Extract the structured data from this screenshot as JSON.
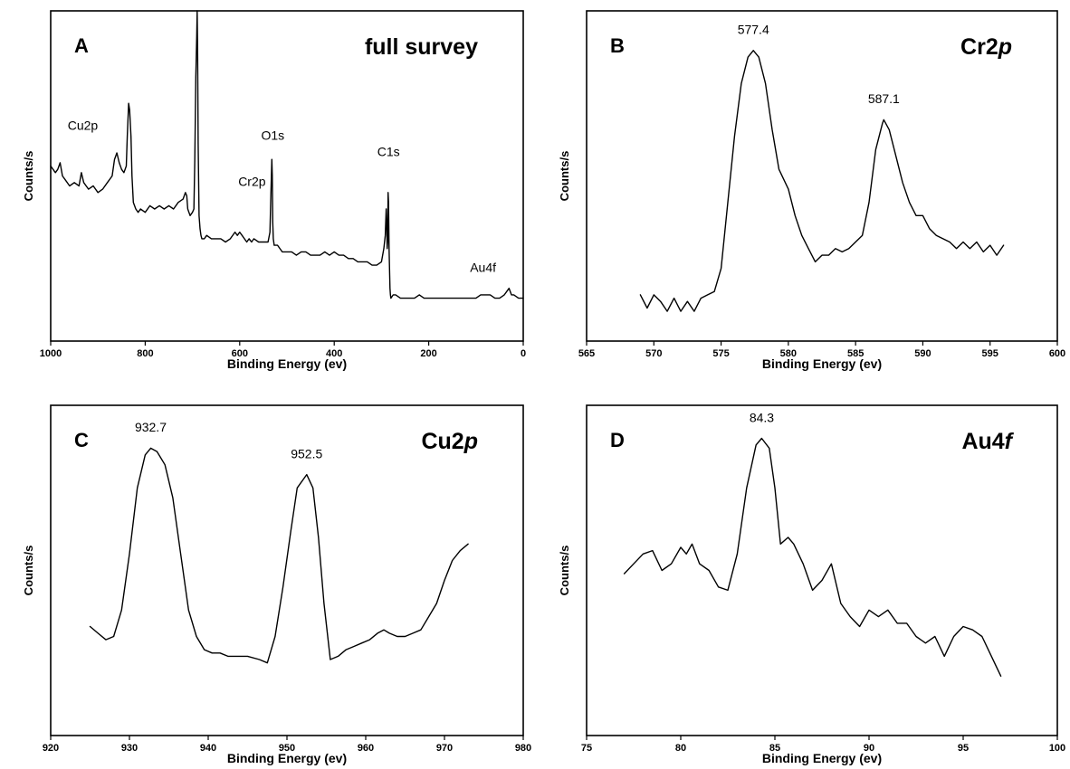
{
  "chart_data": [
    {
      "type": "line",
      "panel": "A",
      "title": "full survey",
      "title_italic_suffix": "",
      "xlabel": "Binding Energy (ev)",
      "ylabel": "Counts/s",
      "xlim": [
        1000,
        0
      ],
      "ylim": [
        0,
        100
      ],
      "xticks": [
        1000,
        800,
        600,
        400,
        200,
        0
      ],
      "grid": false,
      "x": [
        1000,
        990,
        985,
        980,
        975,
        970,
        960,
        950,
        940,
        935,
        930,
        920,
        910,
        900,
        890,
        880,
        870,
        865,
        860,
        855,
        850,
        845,
        840,
        838,
        835,
        833,
        830,
        828,
        825,
        820,
        815,
        810,
        800,
        790,
        780,
        770,
        760,
        750,
        740,
        730,
        720,
        715,
        712,
        710,
        705,
        700,
        697,
        695,
        693,
        691,
        690,
        689,
        688,
        686,
        684,
        682,
        680,
        675,
        670,
        660,
        650,
        640,
        630,
        620,
        610,
        605,
        600,
        595,
        590,
        585,
        580,
        575,
        570,
        560,
        550,
        540,
        536,
        534,
        532,
        531,
        530,
        529,
        527,
        525,
        520,
        510,
        500,
        490,
        480,
        470,
        460,
        450,
        440,
        430,
        420,
        410,
        400,
        390,
        380,
        370,
        360,
        350,
        340,
        330,
        320,
        310,
        300,
        295,
        292,
        290,
        289,
        288,
        287,
        286,
        285,
        284,
        283,
        282,
        281,
        280,
        275,
        270,
        260,
        250,
        240,
        230,
        220,
        210,
        200,
        190,
        180,
        170,
        160,
        150,
        140,
        130,
        120,
        110,
        100,
        90,
        84,
        80,
        70,
        60,
        50,
        40,
        35,
        30,
        25,
        20,
        10,
        0
      ],
      "y": [
        53,
        51,
        52,
        54,
        50,
        49,
        47,
        48,
        47,
        51,
        48,
        46,
        47,
        45,
        46,
        48,
        50,
        55,
        57,
        54,
        52,
        51,
        53,
        62,
        72,
        70,
        62,
        50,
        42,
        40,
        39,
        40,
        39,
        41,
        40,
        41,
        40,
        41,
        40,
        42,
        43,
        45,
        44,
        40,
        38,
        39,
        40,
        55,
        80,
        92,
        100,
        88,
        60,
        38,
        34,
        32,
        31,
        31,
        32,
        31,
        31,
        31,
        30,
        31,
        33,
        32,
        33,
        32,
        31,
        30,
        31,
        30,
        31,
        30,
        30,
        30,
        33,
        45,
        55,
        50,
        36,
        31,
        29,
        29,
        29,
        27,
        27,
        27,
        26,
        27,
        27,
        26,
        26,
        26,
        27,
        26,
        27,
        26,
        26,
        25,
        25,
        24,
        24,
        24,
        23,
        23,
        24,
        28,
        32,
        40,
        36,
        28,
        30,
        45,
        42,
        28,
        22,
        16,
        14,
        13,
        14,
        14,
        13,
        13,
        13,
        13,
        14,
        13,
        13,
        13,
        13,
        13,
        13,
        13,
        13,
        13,
        13,
        13,
        13,
        14,
        14,
        14,
        14,
        13,
        13,
        14,
        15,
        16,
        14,
        14,
        13,
        13
      ],
      "annotations": [
        {
          "text": "Cu2p",
          "x": 932,
          "y": 64
        },
        {
          "text": "Cr2p",
          "x": 574,
          "y": 47
        },
        {
          "text": "O1s",
          "x": 530,
          "y": 61
        },
        {
          "text": "C1s",
          "x": 285,
          "y": 56
        },
        {
          "text": "Au4f",
          "x": 85,
          "y": 21
        }
      ]
    },
    {
      "type": "line",
      "panel": "B",
      "title": "Cr2",
      "title_italic_suffix": "p",
      "xlabel": "Binding Energy (ev)",
      "ylabel": "Counts/s",
      "xlim": [
        565,
        600
      ],
      "ylim": [
        0,
        100
      ],
      "xticks": [
        565,
        570,
        575,
        580,
        585,
        590,
        595,
        600
      ],
      "grid": false,
      "x": [
        569,
        569.5,
        570,
        570.5,
        571,
        571.5,
        572,
        572.5,
        573,
        573.5,
        574,
        574.5,
        575,
        575.5,
        576,
        576.5,
        577,
        577.4,
        577.8,
        578.3,
        578.8,
        579.3,
        580,
        580.5,
        581,
        581.5,
        582,
        582.5,
        583,
        583.5,
        584,
        584.5,
        585,
        585.5,
        586,
        586.5,
        587,
        587.1,
        587.5,
        588,
        588.5,
        589,
        589.5,
        590,
        590.5,
        591,
        591.5,
        592,
        592.5,
        593,
        593.5,
        594,
        594.5,
        595,
        595.5,
        596
      ],
      "y": [
        14,
        10,
        14,
        12,
        9,
        13,
        9,
        12,
        9,
        13,
        14,
        15,
        22,
        42,
        62,
        78,
        86,
        88,
        86,
        78,
        64,
        52,
        46,
        38,
        32,
        28,
        24,
        26,
        26,
        28,
        27,
        28,
        30,
        32,
        42,
        58,
        66,
        67,
        64,
        56,
        48,
        42,
        38,
        38,
        34,
        32,
        31,
        30,
        28,
        30,
        28,
        30,
        27,
        29,
        26,
        29
      ],
      "annotations": [
        {
          "text": "577.4",
          "x": 577.4,
          "y": 93
        },
        {
          "text": "587.1",
          "x": 587.1,
          "y": 72
        }
      ]
    },
    {
      "type": "line",
      "panel": "C",
      "title": "Cu2",
      "title_italic_suffix": "p",
      "xlabel": "Binding Energy (ev)",
      "ylabel": "Counts/s",
      "xlim": [
        920,
        980
      ],
      "ylim": [
        0,
        100
      ],
      "xticks": [
        920,
        930,
        940,
        950,
        960,
        970,
        980
      ],
      "grid": false,
      "x": [
        925,
        926,
        927,
        928,
        929,
        930,
        931,
        932,
        932.7,
        933.5,
        934.5,
        935.5,
        936.5,
        937.5,
        938.5,
        939.5,
        940.5,
        941.5,
        942.5,
        943.5,
        945,
        946.5,
        947.5,
        948.5,
        949.5,
        950.5,
        951.3,
        952.5,
        953.3,
        954,
        954.7,
        955.5,
        956.5,
        957.5,
        958.5,
        959.5,
        960.5,
        961.5,
        962.3,
        963,
        964,
        965,
        966,
        967,
        968,
        969,
        970,
        971,
        972,
        973
      ],
      "y": [
        33,
        31,
        29,
        30,
        38,
        55,
        75,
        85,
        87,
        86,
        82,
        72,
        55,
        38,
        30,
        26,
        25,
        25,
        24,
        24,
        24,
        23,
        22,
        30,
        45,
        62,
        75,
        79,
        75,
        60,
        40,
        23,
        24,
        26,
        27,
        28,
        29,
        31,
        32,
        31,
        30,
        30,
        31,
        32,
        36,
        40,
        47,
        53,
        56,
        58
      ],
      "annotations": [
        {
          "text": "932.7",
          "x": 932.7,
          "y": 92
        },
        {
          "text": "952.5",
          "x": 952.5,
          "y": 84
        }
      ]
    },
    {
      "type": "line",
      "panel": "D",
      "title": "Au4",
      "title_italic_suffix": "f",
      "xlabel": "Binding Energy (ev)",
      "ylabel": "Counts/s",
      "xlim": [
        75,
        100
      ],
      "ylim": [
        0,
        100
      ],
      "xticks": [
        75,
        80,
        85,
        90,
        95,
        100
      ],
      "grid": false,
      "x": [
        77,
        77.5,
        78,
        78.5,
        79,
        79.5,
        80,
        80.3,
        80.6,
        81,
        81.5,
        82,
        82.5,
        83,
        83.5,
        84,
        84.3,
        84.7,
        85,
        85.3,
        85.7,
        86,
        86.5,
        87,
        87.5,
        88,
        88.5,
        89,
        89.5,
        90,
        90.5,
        91,
        91.5,
        92,
        92.5,
        93,
        93.5,
        94,
        94.5,
        95,
        95.5,
        96,
        96.5,
        97
      ],
      "y": [
        49,
        52,
        55,
        56,
        50,
        52,
        57,
        55,
        58,
        52,
        50,
        45,
        44,
        55,
        75,
        88,
        90,
        87,
        75,
        58,
        60,
        58,
        52,
        44,
        47,
        52,
        40,
        36,
        33,
        38,
        36,
        38,
        34,
        34,
        30,
        28,
        30,
        24,
        30,
        33,
        32,
        30,
        24,
        18
      ],
      "annotations": [
        {
          "text": "84.3",
          "x": 84.3,
          "y": 95
        }
      ]
    }
  ]
}
